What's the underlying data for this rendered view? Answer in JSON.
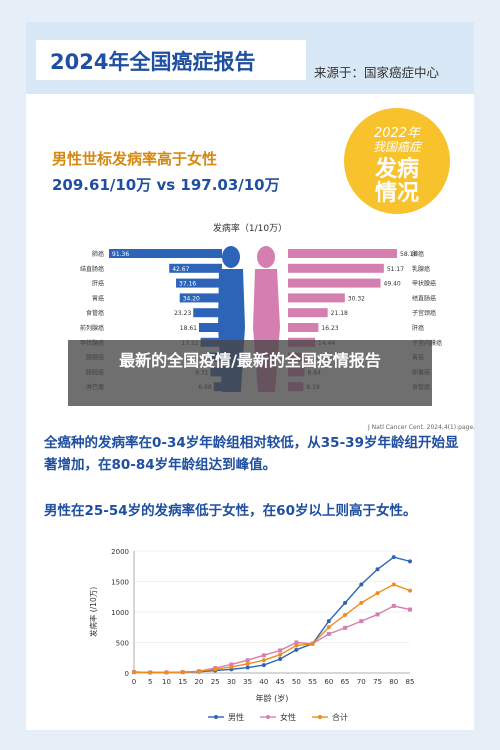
{
  "report": {
    "title": "2024年全国癌症报告",
    "source": "来源于：国家癌症中心"
  },
  "badge": {
    "line1": "2022年",
    "line2": "我国癌症",
    "line3": "发病",
    "line4": "情况"
  },
  "headline": "男性世标发病率高于女性",
  "subhead": "209.61/10万 vs 197.03/10万",
  "reference": "J Natl Cancer Cent. 2024,4(1):page.",
  "overlay": "最新的全国疫情/最新的全国疫情报告",
  "paragraph1": "全癌种的发病率在0-34岁年龄组相对较低，从35-39岁年龄组开始显著增加，在80-84岁年龄组达到峰值。",
  "paragraph2": "男性在25-54岁的发病率低于女性，在60岁以上则高于女性。",
  "colors": {
    "male": "#2e64b8",
    "female": "#d47fb0",
    "total": "#f08c1e",
    "accent": "#1f4fa0"
  },
  "chart_data": [
    {
      "type": "bar",
      "title": "发病率（1/10万）",
      "series": [
        {
          "name": "男性",
          "categories": [
            "肺癌",
            "结直肠癌",
            "肝癌",
            "胃癌",
            "食管癌",
            "前列腺癌",
            "甲状腺癌",
            "胰腺癌",
            "膀胱癌",
            "淋巴瘤"
          ],
          "values": [
            91.36,
            42.67,
            37.16,
            34.2,
            23.23,
            18.61,
            17.32,
            9.83,
            9.31,
            6.68
          ]
        },
        {
          "name": "女性",
          "categories": [
            "肺癌",
            "乳腺癌",
            "甲状腺癌",
            "结直肠癌",
            "子宫颈癌",
            "肝癌",
            "子宫内膜癌",
            "胃癌",
            "卵巢癌",
            "食管癌"
          ],
          "values": [
            58.18,
            51.17,
            49.4,
            30.32,
            21.18,
            16.23,
            14.44,
            12.0,
            8.84,
            8.19
          ]
        }
      ]
    },
    {
      "type": "line",
      "xlabel": "年龄 (岁)",
      "ylabel": "发病率 (/10万)",
      "x": [
        0,
        5,
        10,
        15,
        20,
        25,
        30,
        35,
        40,
        45,
        50,
        55,
        60,
        65,
        70,
        75,
        80,
        85
      ],
      "ylim": [
        0,
        2000
      ],
      "yticks": [
        0,
        500,
        1000,
        1500,
        2000
      ],
      "legend": "bottom",
      "series": [
        {
          "name": "男性",
          "values": [
            18,
            10,
            10,
            15,
            20,
            40,
            60,
            90,
            130,
            230,
            380,
            480,
            850,
            1150,
            1450,
            1700,
            1900,
            1830
          ]
        },
        {
          "name": "女性",
          "values": [
            14,
            8,
            9,
            14,
            30,
            80,
            140,
            210,
            290,
            370,
            500,
            480,
            640,
            740,
            850,
            960,
            1100,
            1040
          ]
        },
        {
          "name": "合计",
          "values": [
            16,
            9,
            10,
            15,
            25,
            60,
            100,
            150,
            210,
            300,
            450,
            480,
            750,
            950,
            1150,
            1310,
            1450,
            1350
          ]
        }
      ]
    }
  ]
}
